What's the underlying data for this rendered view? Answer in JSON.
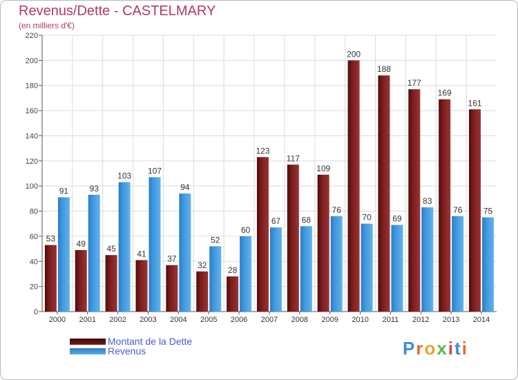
{
  "chart_data": {
    "type": "bar",
    "title": "Revenus/Dette - CASTELMARY",
    "subtitle": "(en milliers d'€)",
    "xlabel": "",
    "ylabel": "",
    "ylim": [
      0,
      220
    ],
    "yticks": [
      0,
      20,
      40,
      60,
      80,
      100,
      120,
      140,
      160,
      180,
      200,
      220
    ],
    "grid": true,
    "legend_position": "bottom-left",
    "categories": [
      "2000",
      "2001",
      "2002",
      "2003",
      "2004",
      "2005",
      "2006",
      "2007",
      "2008",
      "2009",
      "2010",
      "2011",
      "2012",
      "2013",
      "2014"
    ],
    "series": [
      {
        "name": "Montant de la Dette",
        "color": "#7a1a1a",
        "values": [
          53,
          49,
          45,
          41,
          37,
          32,
          28,
          123,
          117,
          109,
          200,
          188,
          177,
          169,
          161
        ]
      },
      {
        "name": "Revenus",
        "color": "#3f97dc",
        "values": [
          91,
          93,
          103,
          107,
          94,
          52,
          60,
          67,
          68,
          76,
          70,
          69,
          83,
          76,
          75
        ]
      }
    ]
  },
  "logo": {
    "text": "Proxiti"
  },
  "colors": {
    "title": "#b23a5a",
    "legend_text": "#4a5ad8",
    "debt": "#7a1a1a",
    "revenue": "#3f97dc"
  }
}
